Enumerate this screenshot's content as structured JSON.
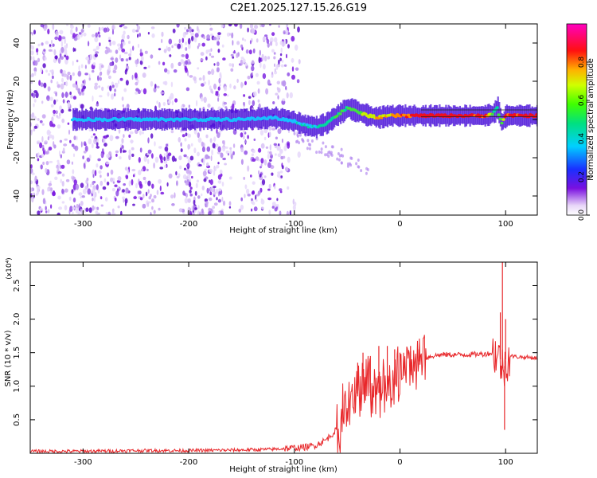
{
  "title": "C2E1.2025.127.15.26.G19",
  "colors": {
    "snr_line": "#e8282b",
    "spec_dots": "#7a12e8",
    "spec_ridge": "#22c8ff",
    "spec_strong": "#e0001a"
  },
  "chart_data": [
    {
      "type": "heatmap",
      "title": "C2E1.2025.127.15.26.G19",
      "xlabel": "Height of straight line (km)",
      "ylabel": "Frequency (Hz)",
      "xlim": [
        -350,
        130
      ],
      "ylim": [
        -50,
        50
      ],
      "x_ticks": [
        -300,
        -200,
        -100,
        0,
        100
      ],
      "y_ticks": [
        -40,
        -20,
        0,
        20,
        40
      ],
      "colorbar": {
        "label": "Normalized spectral amplitude",
        "range": [
          0.0,
          1.0
        ],
        "ticks": [
          "0.0",
          "0.2",
          "0.4",
          "0.6",
          "0.8"
        ],
        "colormap": "white-purple-blue-cyan-green-yellow-orange-red-magenta"
      },
      "ridge": {
        "x": [
          -310,
          -250,
          -200,
          -150,
          -120,
          -100,
          -90,
          -80,
          -70,
          -60,
          -50,
          -40,
          -30,
          -20,
          -10,
          0,
          20,
          50,
          80,
          88,
          92,
          96,
          100,
          130
        ],
        "y": [
          0,
          0,
          0,
          0,
          1,
          -1,
          -3,
          -4,
          -2,
          2,
          6,
          4,
          2,
          1,
          2,
          2,
          2,
          2,
          2,
          3,
          6,
          -2,
          2,
          2
        ],
        "strength": [
          0.3,
          0.3,
          0.3,
          0.3,
          0.35,
          0.4,
          0.45,
          0.45,
          0.5,
          0.55,
          0.6,
          0.65,
          0.7,
          0.75,
          0.8,
          0.85,
          0.95,
          0.95,
          0.9,
          0.6,
          0.5,
          0.6,
          0.9,
          0.95
        ]
      },
      "noise_region_x": [
        -350,
        -95
      ]
    },
    {
      "type": "line",
      "xlabel": "Height of straight line (km)",
      "ylabel": "SNR (10 * v/v)",
      "y_multiplier": "(x10⁴)",
      "xlim": [
        -350,
        130
      ],
      "ylim": [
        0,
        2.85
      ],
      "x_ticks": [
        -300,
        -200,
        -100,
        0,
        100
      ],
      "y_ticks": [
        0.5,
        1.0,
        1.5,
        2.0,
        2.5
      ],
      "series": [
        {
          "x": [
            -350,
            -300,
            -250,
            -200,
            -150,
            -120,
            -100,
            -90,
            -80,
            -70,
            -60,
            -50,
            -40,
            -30,
            -20,
            -10,
            0,
            10,
            20,
            30,
            40,
            60,
            80,
            90,
            95,
            98,
            100,
            105,
            110,
            120,
            130
          ],
          "y": [
            0.03,
            0.03,
            0.04,
            0.04,
            0.05,
            0.06,
            0.08,
            0.09,
            0.12,
            0.2,
            0.35,
            0.6,
            0.85,
            0.9,
            0.9,
            0.95,
            1.1,
            1.25,
            1.4,
            1.45,
            1.47,
            1.47,
            1.48,
            1.5,
            1.4,
            1.2,
            1.4,
            1.45,
            1.44,
            1.43,
            1.42
          ],
          "spikes": [
            {
              "x": -40,
              "y": 1.35
            },
            {
              "x": -35,
              "y": 1.5
            },
            {
              "x": -28,
              "y": 1.45
            },
            {
              "x": -20,
              "y": 1.6
            },
            {
              "x": -12,
              "y": 1.6
            },
            {
              "x": -5,
              "y": 1.55
            },
            {
              "x": 0,
              "y": 1.5
            },
            {
              "x": 10,
              "y": 1.6
            },
            {
              "x": 18,
              "y": 1.55
            },
            {
              "x": 97,
              "y": 2.85
            },
            {
              "x": 99,
              "y": 0.35
            },
            {
              "x": 95,
              "y": 2.1
            },
            {
              "x": 100,
              "y": 2.0
            }
          ]
        }
      ]
    }
  ]
}
